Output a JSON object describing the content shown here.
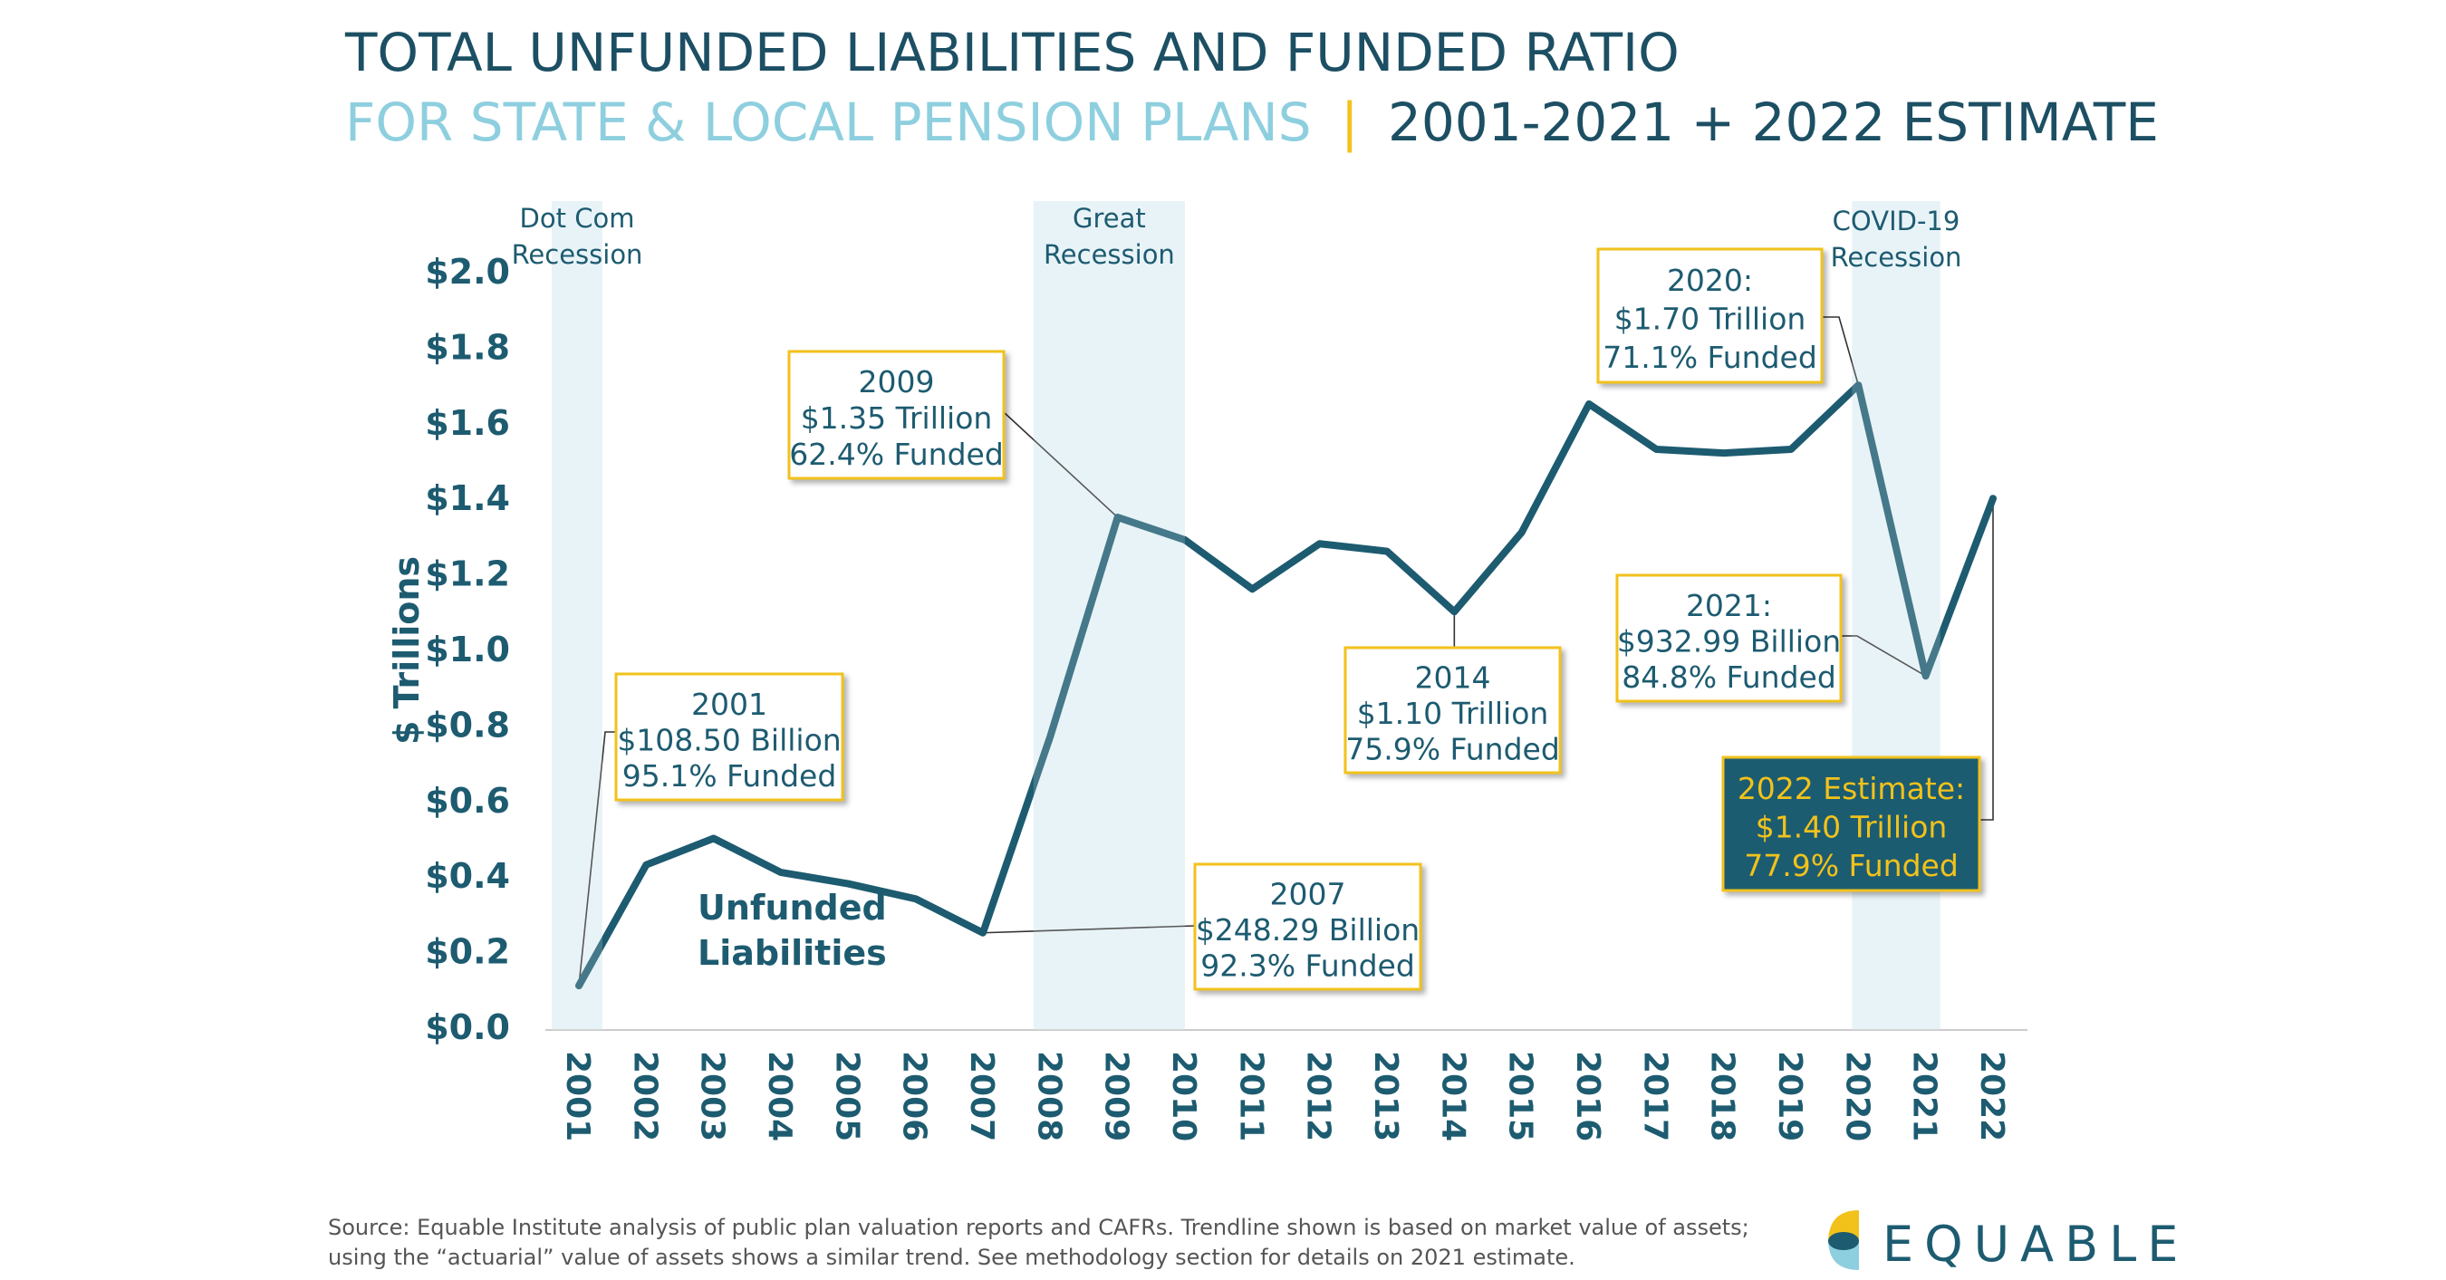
{
  "title": {
    "line1": "TOTAL UNFUNDED LIABILITIES AND FUNDED RATIO",
    "line2_left": "FOR STATE & LOCAL PENSION PLANS",
    "separator": "|",
    "line2_right": "2001-2021 + 2022 ESTIMATE"
  },
  "colors": {
    "primary": "#1d5b70",
    "light_blue": "#8ecfdf",
    "accent_yellow": "#f2c21b",
    "band": "#e3f1f7"
  },
  "chart_data": {
    "type": "line",
    "ylabel": "$ Trillions",
    "ylim": [
      0,
      2.0
    ],
    "y_ticks": [
      "$0.0",
      "$0.2",
      "$0.4",
      "$0.6",
      "$0.8",
      "$1.0",
      "$1.2",
      "$1.4",
      "$1.6",
      "$1.8",
      "$2.0"
    ],
    "x": [
      "2001",
      "2002",
      "2003",
      "2004",
      "2005",
      "2006",
      "2007",
      "2008",
      "2009",
      "2010",
      "2011",
      "2012",
      "2013",
      "2014",
      "2015",
      "2016",
      "2017",
      "2018",
      "2019",
      "2020",
      "2021",
      "2022"
    ],
    "series": [
      {
        "name": "Unfunded Liabilities",
        "values": [
          0.11,
          0.43,
          0.5,
          0.41,
          0.38,
          0.34,
          0.25,
          0.77,
          1.35,
          1.29,
          1.16,
          1.28,
          1.26,
          1.1,
          1.31,
          1.65,
          1.53,
          1.52,
          1.53,
          1.7,
          0.93,
          1.4
        ]
      }
    ],
    "series_label": [
      "Unfunded",
      "Liabilities"
    ],
    "recessions": [
      {
        "label": [
          "Dot Com",
          "Recession"
        ],
        "from": "2001",
        "to": "2001"
      },
      {
        "label": [
          "Great",
          "Recession"
        ],
        "from": "2008",
        "to": "2010"
      },
      {
        "label": [
          "COVID-19",
          "Recession"
        ],
        "from": "2020",
        "to": "2021"
      }
    ],
    "annotations": [
      {
        "year": "2001",
        "lines": [
          "2001",
          "$108.50 Billion",
          "95.1% Funded"
        ]
      },
      {
        "year": "2009",
        "lines": [
          "2009",
          "$1.35 Trillion",
          "62.4% Funded"
        ]
      },
      {
        "year": "2007",
        "lines": [
          "2007",
          "$248.29 Billion",
          "92.3% Funded"
        ]
      },
      {
        "year": "2014",
        "lines": [
          "2014",
          "$1.10 Trillion",
          "75.9% Funded"
        ]
      },
      {
        "year": "2020",
        "lines": [
          "2020:",
          "$1.70 Trillion",
          "71.1% Funded"
        ]
      },
      {
        "year": "2021",
        "lines": [
          "2021:",
          "$932.99 Billion",
          "84.8% Funded"
        ]
      },
      {
        "year": "2022",
        "lines": [
          "2022 Estimate:",
          "$1.40 Trillion",
          "77.9% Funded"
        ],
        "highlight": true
      }
    ],
    "grid": false
  },
  "footer": {
    "source_line1": "Source: Equable Institute analysis of public plan valuation reports and CAFRs. Trendline shown is based on market value of assets;",
    "source_line2": "using the “actuarial” value of assets shows a similar trend.  See methodology section for details on 2021 estimate."
  },
  "logo": {
    "text": "EQUABLE"
  }
}
